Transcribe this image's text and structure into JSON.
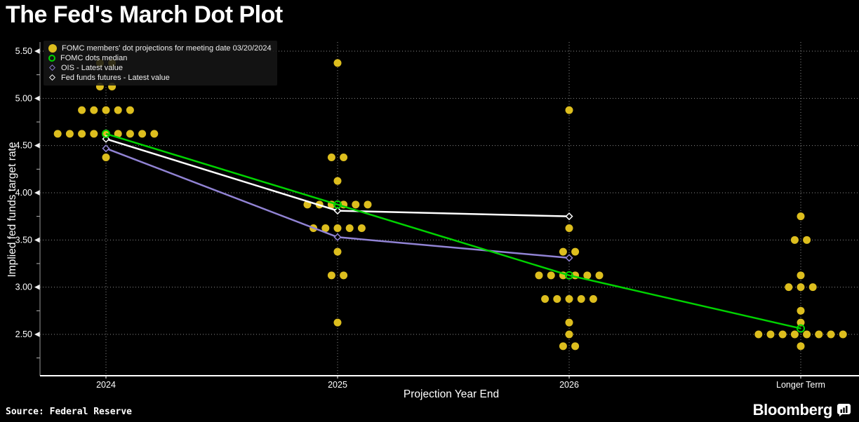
{
  "page": {
    "title": "The Fed's March Dot Plot",
    "source": "Source: Federal Reserve",
    "brand": "Bloomberg"
  },
  "legend": {
    "items": [
      {
        "label": "FOMC members' dot projections for meeting date 03/20/2024",
        "marker": "filled-circle",
        "color": "#ddbe1e"
      },
      {
        "label": "FOMC dots median",
        "marker": "open-circle",
        "color": "#00d300"
      },
      {
        "label": "OIS - Latest value",
        "marker": "open-diamond",
        "color": "#9183d4"
      },
      {
        "label": "Fed funds futures - Latest value",
        "marker": "open-diamond",
        "color": "#ffffff"
      }
    ]
  },
  "chart_data": {
    "type": "scatter",
    "title": "The Fed's March Dot Plot",
    "xlabel": "Projection Year End",
    "ylabel": "Implied fed funds target rate",
    "categories": [
      "2024",
      "2025",
      "2026",
      "Longer Term"
    ],
    "y_ticks": [
      5.5,
      5.0,
      4.5,
      4.0,
      3.5,
      3.0,
      2.5
    ],
    "y_minor_ticks": [
      5.25,
      4.75,
      4.25,
      3.75,
      3.25,
      2.75,
      2.25
    ],
    "ylim": [
      2.06,
      5.6
    ],
    "grid": true,
    "legend_position": "top-left",
    "dot_color": "#ddbe1e",
    "fomc_dots": {
      "2024": [
        [
          5.375,
          2
        ],
        [
          5.125,
          2
        ],
        [
          4.875,
          5
        ],
        [
          4.625,
          9
        ],
        [
          4.375,
          1
        ]
      ],
      "2025": [
        [
          5.375,
          1
        ],
        [
          4.375,
          2
        ],
        [
          4.125,
          1
        ],
        [
          3.875,
          6
        ],
        [
          3.625,
          5
        ],
        [
          3.375,
          1
        ],
        [
          3.125,
          2
        ],
        [
          2.625,
          1
        ]
      ],
      "2026": [
        [
          4.875,
          1
        ],
        [
          3.625,
          1
        ],
        [
          3.375,
          2
        ],
        [
          3.125,
          6
        ],
        [
          2.875,
          5
        ],
        [
          2.625,
          1
        ],
        [
          2.5,
          1
        ],
        [
          2.375,
          2
        ]
      ],
      "Longer Term": [
        [
          3.75,
          1
        ],
        [
          3.5,
          2
        ],
        [
          3.125,
          1
        ],
        [
          3.0,
          3
        ],
        [
          2.75,
          1
        ],
        [
          2.625,
          1
        ],
        [
          2.5,
          8
        ],
        [
          2.375,
          1
        ]
      ]
    },
    "series": [
      {
        "name": "OIS - Latest value",
        "marker": "open-diamond",
        "color": "#9183d4",
        "categories": [
          "2024",
          "2025",
          "2026"
        ],
        "values": [
          4.47,
          3.53,
          3.31
        ]
      },
      {
        "name": "Fed funds futures - Latest value",
        "marker": "open-diamond",
        "color": "#ffffff",
        "categories": [
          "2024",
          "2025",
          "2026"
        ],
        "values": [
          4.57,
          3.81,
          3.75
        ]
      },
      {
        "name": "FOMC dots median",
        "marker": "open-circle",
        "color": "#00d300",
        "categories": [
          "2024",
          "2025",
          "2026",
          "Longer Term"
        ],
        "values": [
          4.625,
          3.875,
          3.125,
          2.5625
        ]
      }
    ]
  }
}
